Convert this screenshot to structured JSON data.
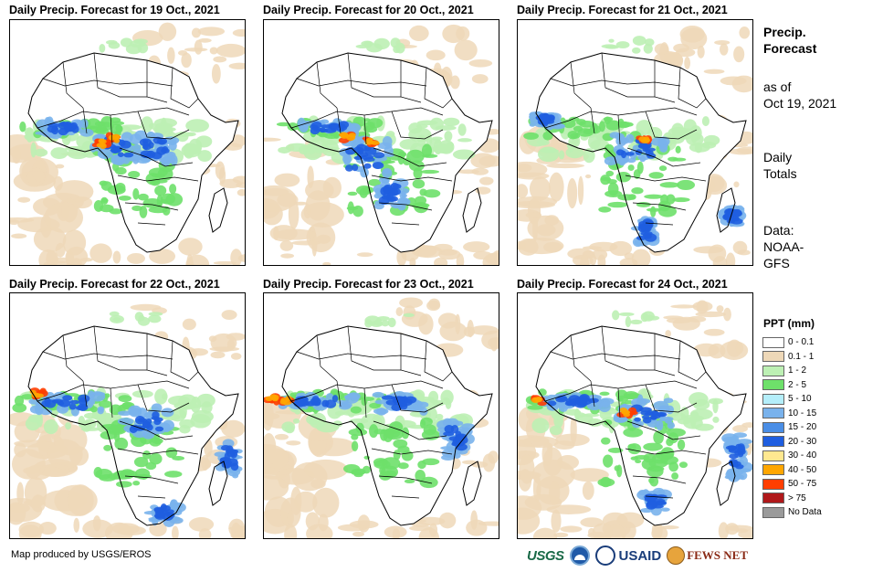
{
  "panels": [
    {
      "title": "Daily Precip. Forecast for 19 Oct., 2021",
      "key": "p19"
    },
    {
      "title": "Daily Precip. Forecast for 20 Oct., 2021",
      "key": "p20"
    },
    {
      "title": "Daily Precip. Forecast for 21 Oct., 2021",
      "key": "p21"
    },
    {
      "title": "Daily Precip. Forecast for 22 Oct., 2021",
      "key": "p22"
    },
    {
      "title": "Daily Precip. Forecast for 23 Oct., 2021",
      "key": "p23"
    },
    {
      "title": "Daily Precip. Forecast for 24 Oct., 2021",
      "key": "p24"
    }
  ],
  "sidebar": {
    "title_line1": "Precip.",
    "title_line2": "Forecast",
    "asof_line1": "as of",
    "asof_line2": "Oct 19, 2021",
    "totals_line1": "Daily",
    "totals_line2": "Totals",
    "data_line1": "Data:",
    "data_line2": "NOAA-",
    "data_line3": "GFS"
  },
  "legend": {
    "title": "PPT (mm)",
    "items": [
      {
        "label": "0 - 0.1",
        "color": "#ffffff"
      },
      {
        "label": "0.1 - 1",
        "color": "#eed8b8"
      },
      {
        "label": "1 - 2",
        "color": "#bdf0b4"
      },
      {
        "label": "2 - 5",
        "color": "#6ee06a"
      },
      {
        "label": "5 - 10",
        "color": "#b4eefa"
      },
      {
        "label": "10 - 15",
        "color": "#79b2ec"
      },
      {
        "label": "15 - 20",
        "color": "#4a8ee6"
      },
      {
        "label": "20 - 30",
        "color": "#1f5ee0"
      },
      {
        "label": "30 - 40",
        "color": "#ffe890"
      },
      {
        "label": "40 - 50",
        "color": "#ffa600"
      },
      {
        "label": "50 - 75",
        "color": "#ff3e00"
      },
      {
        "label": "> 75",
        "color": "#b0181a"
      },
      {
        "label": "No Data",
        "color": "#9a9a9a"
      }
    ]
  },
  "footer": {
    "credit": "Map produced by USGS/EROS"
  },
  "logos": {
    "usgs": "USGS",
    "usaid": "USAID",
    "fews": "FEWS NET"
  }
}
